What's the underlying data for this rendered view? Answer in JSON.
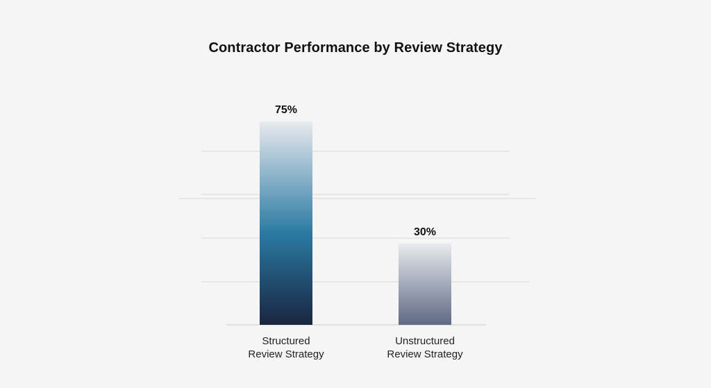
{
  "chart_data": {
    "type": "bar",
    "title": "Contractor Performance by Review Strategy",
    "xlabel": "",
    "ylabel": "",
    "ylim": [
      0,
      100
    ],
    "grid": true,
    "unit": "%",
    "categories": [
      [
        "Structured",
        "Review Strategy"
      ],
      [
        "Unstructured",
        "Review Strategy"
      ]
    ],
    "values": [
      75,
      30
    ],
    "data_labels": [
      "75%",
      "30%"
    ],
    "colors": {
      "bar1_top": "#e8eaee",
      "bar1_mid": "#2a7aa3",
      "bar1_bottom": "#1a2540",
      "bar2_top": "#e8eaee",
      "bar2_bottom": "#5e6a84",
      "grid": "#d9d9d9",
      "baseline": "#cccccc"
    }
  }
}
